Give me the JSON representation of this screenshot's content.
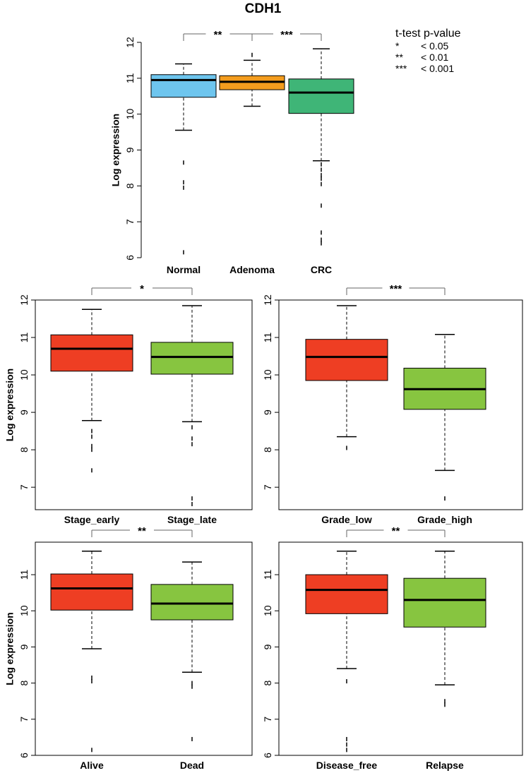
{
  "title": "CDH1",
  "legend": {
    "title": "t-test p-value",
    "entries": [
      {
        "symbol": "*",
        "label": "< 0.05"
      },
      {
        "symbol": "**",
        "label": "< 0.01"
      },
      {
        "symbol": "***",
        "label": "< 0.001"
      }
    ]
  },
  "chart_data": [
    {
      "type": "boxplot",
      "ylabel": "Log expression",
      "ylim": [
        6,
        12
      ],
      "yticks": [
        6,
        7,
        8,
        9,
        10,
        11,
        12
      ],
      "categories": [
        "Normal",
        "Adenoma",
        "CRC"
      ],
      "colors": [
        "#6EC5EE",
        "#F39C1E",
        "#3FB577"
      ],
      "boxes": [
        {
          "whisker_low": 9.55,
          "q1": 10.47,
          "median": 10.95,
          "q3": 11.1,
          "whisker_high": 11.4,
          "outliers": [
            8.65,
            8.1,
            7.95,
            6.15
          ]
        },
        {
          "whisker_low": 10.22,
          "q1": 10.68,
          "median": 10.9,
          "q3": 11.07,
          "whisker_high": 11.5,
          "outliers": [
            11.65
          ]
        },
        {
          "whisker_low": 8.7,
          "q1": 10.02,
          "median": 10.6,
          "q3": 10.98,
          "whisker_high": 11.82,
          "outliers": [
            8.6,
            8.45,
            8.3,
            8.2,
            8.05,
            7.45,
            6.7,
            6.5,
            6.4
          ]
        }
      ],
      "comparisons": [
        {
          "from": 0,
          "to": 1,
          "label": "**"
        },
        {
          "from": 1,
          "to": 2,
          "label": "***"
        }
      ]
    },
    {
      "type": "boxplot",
      "ylabel": "Log expression",
      "ylim": [
        6.4,
        12
      ],
      "yticks": [
        7,
        8,
        9,
        10,
        11,
        12
      ],
      "categories": [
        "Stage_early",
        "Stage_late"
      ],
      "colors": [
        "#EE3E23",
        "#87C540"
      ],
      "boxes": [
        {
          "whisker_low": 8.78,
          "q1": 10.1,
          "median": 10.7,
          "q3": 11.07,
          "whisker_high": 11.75,
          "outliers": [
            8.5,
            8.35,
            8.1,
            8.0,
            7.45
          ]
        },
        {
          "whisker_low": 8.75,
          "q1": 10.02,
          "median": 10.48,
          "q3": 10.87,
          "whisker_high": 11.85,
          "outliers": [
            8.6,
            8.3,
            8.15,
            6.7,
            6.55
          ]
        }
      ],
      "comparisons": [
        {
          "from": 0,
          "to": 1,
          "label": "*"
        }
      ]
    },
    {
      "type": "boxplot",
      "ylabel": "",
      "ylim": [
        6.4,
        12
      ],
      "yticks": [
        7,
        8,
        9,
        10,
        11,
        12
      ],
      "categories": [
        "Grade_low",
        "Grade_high"
      ],
      "colors": [
        "#EE3E23",
        "#87C540"
      ],
      "boxes": [
        {
          "whisker_low": 8.35,
          "q1": 9.85,
          "median": 10.48,
          "q3": 10.95,
          "whisker_high": 11.85,
          "outliers": [
            8.05
          ]
        },
        {
          "whisker_low": 7.45,
          "q1": 9.08,
          "median": 9.62,
          "q3": 10.18,
          "whisker_high": 11.08,
          "outliers": [
            6.7
          ]
        }
      ],
      "comparisons": [
        {
          "from": 0,
          "to": 1,
          "label": "***"
        }
      ]
    },
    {
      "type": "boxplot",
      "ylabel": "Log expression",
      "ylim": [
        6,
        11.9
      ],
      "yticks": [
        6,
        7,
        8,
        9,
        10,
        11
      ],
      "categories": [
        "Alive",
        "Dead"
      ],
      "colors": [
        "#EE3E23",
        "#87C540"
      ],
      "boxes": [
        {
          "whisker_low": 8.95,
          "q1": 10.02,
          "median": 10.62,
          "q3": 11.02,
          "whisker_high": 11.65,
          "outliers": [
            8.15,
            8.05,
            6.15
          ]
        },
        {
          "whisker_low": 8.3,
          "q1": 9.75,
          "median": 10.2,
          "q3": 10.73,
          "whisker_high": 11.35,
          "outliers": [
            8.0,
            7.9,
            6.45
          ]
        }
      ],
      "comparisons": [
        {
          "from": 0,
          "to": 1,
          "label": "**"
        }
      ]
    },
    {
      "type": "boxplot",
      "ylabel": "",
      "ylim": [
        6,
        11.9
      ],
      "yticks": [
        6,
        7,
        8,
        9,
        10,
        11
      ],
      "categories": [
        "Disease_free",
        "Relapse"
      ],
      "colors": [
        "#EE3E23",
        "#87C540"
      ],
      "boxes": [
        {
          "whisker_low": 8.4,
          "q1": 9.92,
          "median": 10.58,
          "q3": 11.0,
          "whisker_high": 11.65,
          "outliers": [
            8.05,
            6.45,
            6.3,
            6.15
          ]
        },
        {
          "whisker_low": 7.95,
          "q1": 9.55,
          "median": 10.3,
          "q3": 10.9,
          "whisker_high": 11.65,
          "outliers": [
            7.5,
            7.4
          ]
        }
      ],
      "comparisons": [
        {
          "from": 0,
          "to": 1,
          "label": "**"
        }
      ]
    }
  ]
}
